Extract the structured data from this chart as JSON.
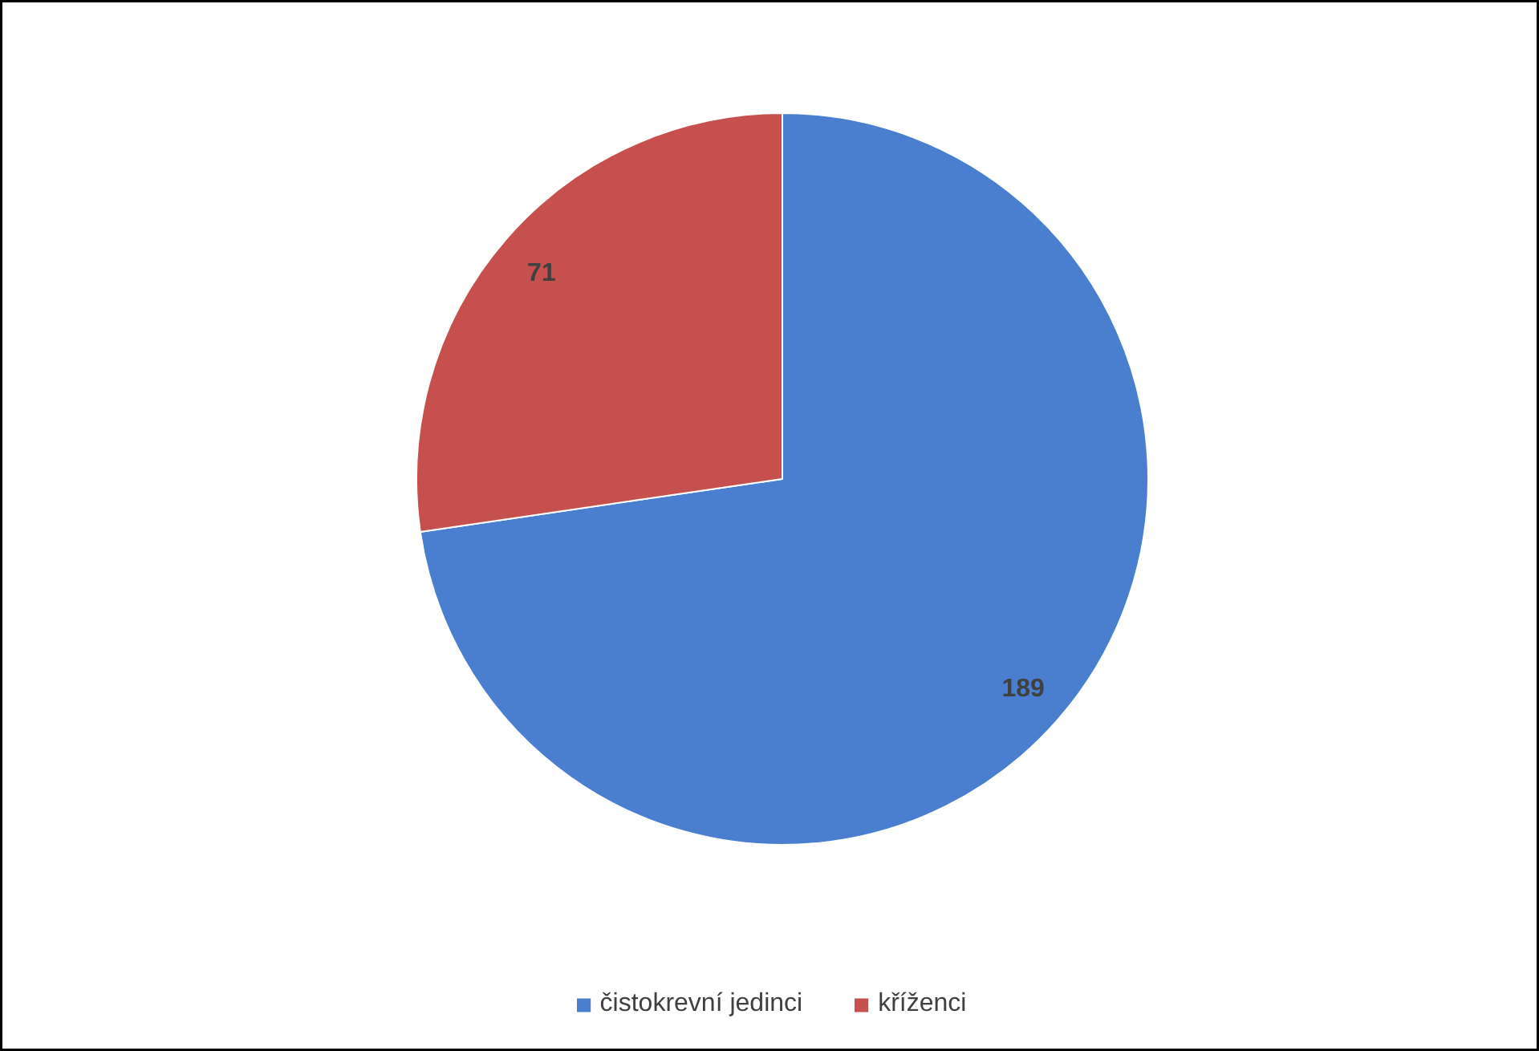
{
  "chart_data": {
    "type": "pie",
    "categories": [
      "čistokrevní jedinci",
      "kříženci"
    ],
    "values": [
      189,
      71
    ],
    "colors": [
      "#4a7fcf",
      "#c6504d"
    ],
    "data_labels": true,
    "legend": "bottom"
  }
}
